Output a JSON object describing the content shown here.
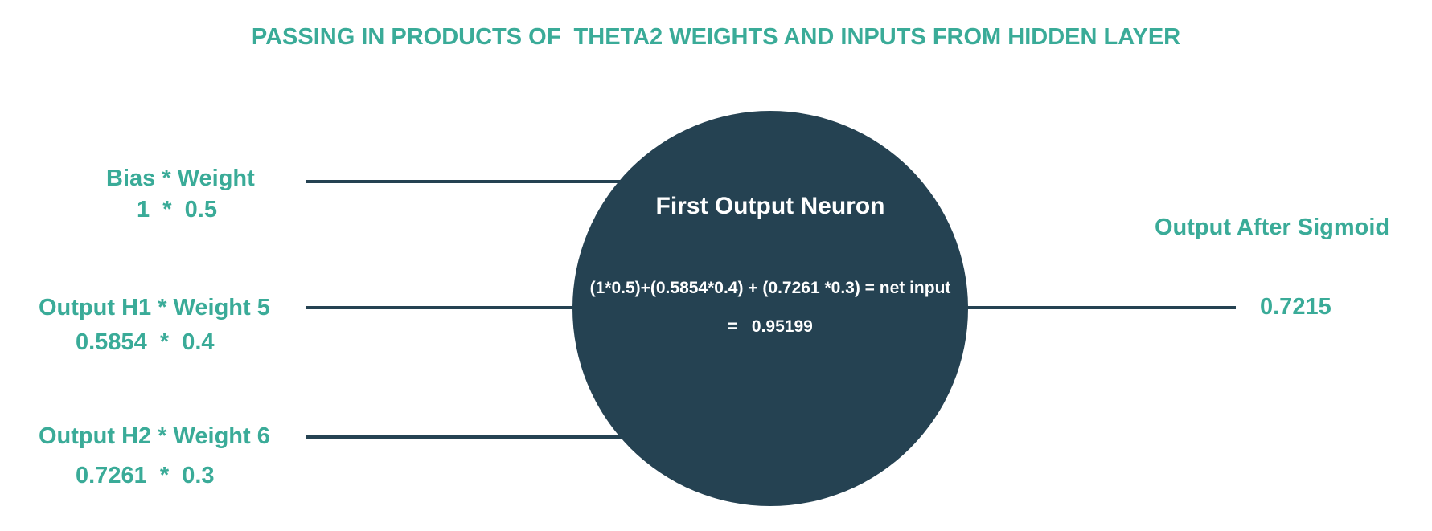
{
  "title": "PASSING IN PRODUCTS OF  THETA2 WEIGHTS AND INPUTS FROM HIDDEN LAYER",
  "inputs": [
    {
      "label": "Bias * Weight",
      "value": "1  *  0.5"
    },
    {
      "label": "Output H1 * Weight 5",
      "value": "0.5854  *  0.4"
    },
    {
      "label": "Output H2 * Weight 6",
      "value": "0.7261  *  0.3"
    }
  ],
  "neuron": {
    "title": "First Output Neuron",
    "equation": "(1*0.5)+(0.5854*0.4) + (0.7261 *0.3) = net input",
    "result": "=   0.95199"
  },
  "output": {
    "label": "Output After Sigmoid",
    "value": "0.7215"
  },
  "colors": {
    "accent": "#3aab98",
    "neuron": "#254252",
    "line": "#254252",
    "neuron_text": "#ffffff"
  }
}
